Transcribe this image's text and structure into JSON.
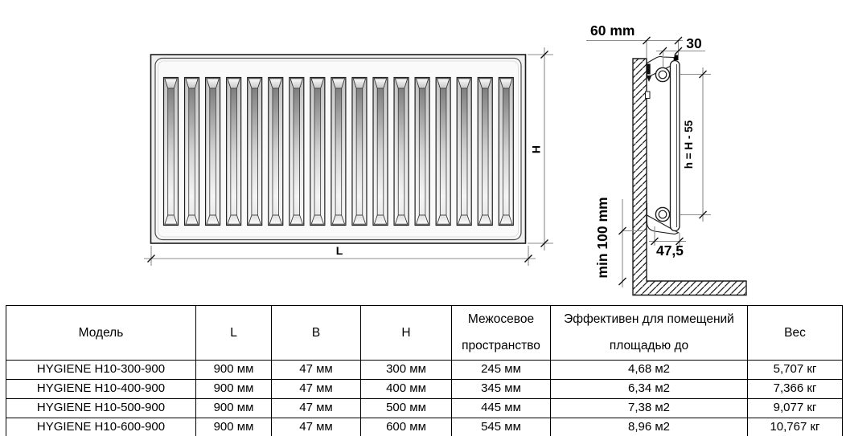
{
  "drawing": {
    "front_view": {
      "length_label": "L",
      "height_label": "H",
      "groove_count": 17
    },
    "side_view": {
      "wall_distance_label": "60 mm",
      "bracket_offset_label": "30",
      "axis_height_label": "h = H - 55",
      "floor_clearance_label": "min 100 mm",
      "depth_label": "47,5"
    },
    "colors": {
      "outline": "#1c1c1c",
      "dimension_line": "#8c8c8c",
      "panel_fill": "#fafafa"
    }
  },
  "table": {
    "headers": [
      "Модель",
      "L",
      "B",
      "H",
      "Межосевое пространство",
      "Эффективен для помещений площадью до",
      "Вес"
    ],
    "rows": [
      [
        "HYGIENE H10-300-900",
        "900 мм",
        "47 мм",
        "300 мм",
        "245 мм",
        "4,68 м2",
        "5,707 кг"
      ],
      [
        "HYGIENE H10-400-900",
        "900 мм",
        "47 мм",
        "400 мм",
        "345 мм",
        "6,34 м2",
        "7,366 кг"
      ],
      [
        "HYGIENE H10-500-900",
        "900 мм",
        "47 мм",
        "500 мм",
        "445 мм",
        "7,38 м2",
        "9,077 кг"
      ],
      [
        "HYGIENE H10-600-900",
        "900 мм",
        "47 мм",
        "600 мм",
        "545 мм",
        "8,96 м2",
        "10,767 кг"
      ]
    ]
  }
}
